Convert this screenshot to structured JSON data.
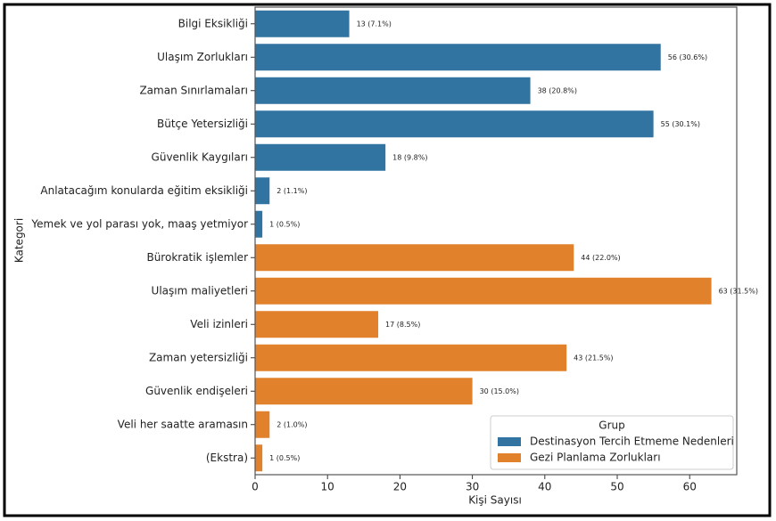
{
  "chart_data": {
    "type": "barh",
    "x_label": "Kişi Sayısı",
    "y_label": "Kategori",
    "categories": [
      "Bilgi Eksikliği",
      "Ulaşım Zorlukları",
      "Zaman Sınırlamaları",
      "Bütçe Yetersizliği",
      "Güvenlik Kaygıları",
      "Anlatacağım konularda eğitim eksikliği",
      "Yemek ve yol parası yok, maaş yetmiyor",
      "Bürokratik işlemler",
      "Ulaşım maliyetleri",
      "Veli izinleri",
      "Zaman yetersizliği",
      "Güvenlik endişeleri",
      "Veli her saatte aramasın",
      "(Ekstra)"
    ],
    "series": [
      {
        "name": "Destinasyon Tercih Etmeme Nedenleri",
        "color": "#3274a1",
        "values": [
          13,
          56,
          38,
          55,
          18,
          2,
          1,
          null,
          null,
          null,
          null,
          null,
          null,
          null
        ],
        "value_labels": [
          "13 (7.1%)",
          "56 (30.6%)",
          "38 (20.8%)",
          "55 (30.1%)",
          "18 (9.8%)",
          "2 (1.1%)",
          "1 (0.5%)",
          null,
          null,
          null,
          null,
          null,
          null,
          null
        ]
      },
      {
        "name": "Gezi Planlama Zorlukları",
        "color": "#e1812c",
        "values": [
          null,
          null,
          null,
          null,
          null,
          null,
          null,
          44,
          63,
          17,
          43,
          30,
          2,
          1
        ],
        "value_labels": [
          null,
          null,
          null,
          null,
          null,
          null,
          null,
          "44 (22.0%)",
          "63 (31.5%)",
          "17 (8.5%)",
          "43 (21.5%)",
          "30 (15.0%)",
          "2 (1.0%)",
          "1 (0.5%)"
        ]
      }
    ],
    "legend_title": "Grup",
    "legend_position": "lower right",
    "xlim": [
      0,
      66.5
    ],
    "xticks": [
      0,
      10,
      20,
      30,
      40,
      50,
      60
    ],
    "grid": false
  }
}
